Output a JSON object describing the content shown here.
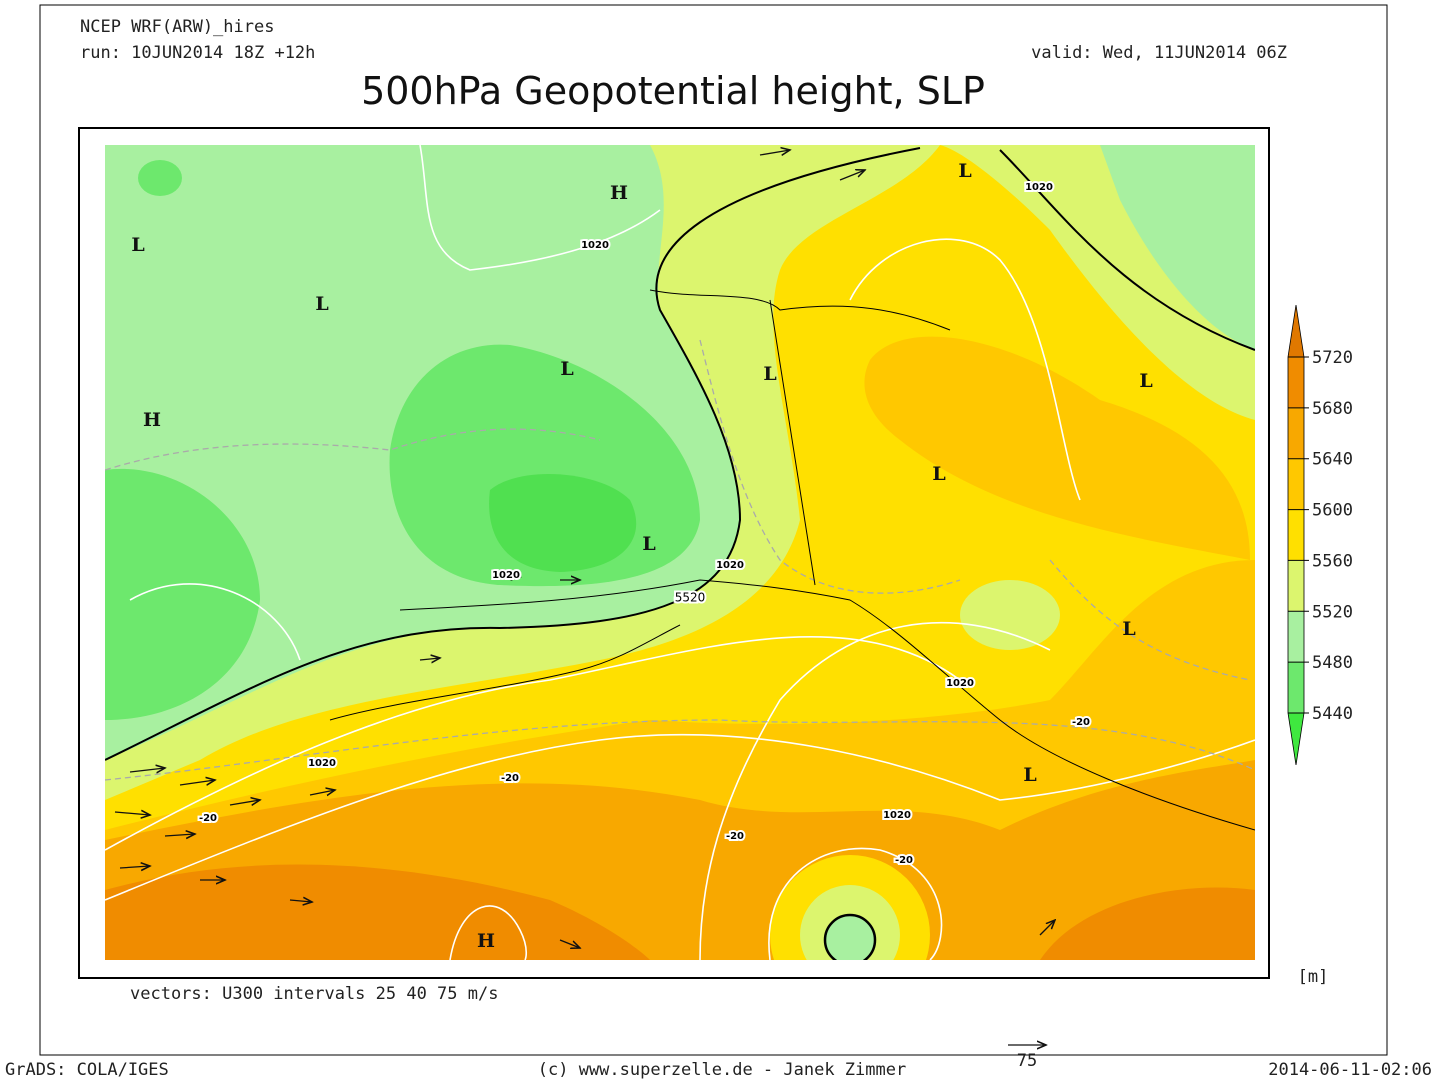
{
  "header": {
    "model": "NCEP WRF(ARW)_hires",
    "run": "run: 10JUN2014 18Z +12h",
    "valid": "valid: Wed, 11JUN2014 06Z",
    "title": "500hPa Geopotential height, SLP"
  },
  "pressure_centers": [
    "L",
    "H",
    "L",
    "L",
    "L",
    "H",
    "L",
    "L",
    "L",
    "L",
    "L",
    "L",
    "H"
  ],
  "contour_labels": [
    "1020",
    "1020",
    "1020",
    "1020",
    "5520",
    "1020",
    "-20",
    "1020",
    "-20",
    "-20",
    "-20",
    "1020",
    "-20"
  ],
  "colorbar": {
    "ticks": [
      5440,
      5480,
      5520,
      5560,
      5600,
      5640,
      5680,
      5720
    ],
    "colors": [
      "#3fe83f",
      "#6de86d",
      "#a8f0a0",
      "#dcf56e",
      "#ffe000",
      "#ffc800",
      "#f8a800",
      "#f08c00",
      "#e07800"
    ],
    "unit": "[m]"
  },
  "footer": {
    "vectors_note": "vectors: U300 intervals 25 40 75 m/s",
    "reference_vector": "75",
    "software": "GrADS: COLA/IGES",
    "credit": "(c) www.superzelle.de - Janek Zimmer",
    "timestamp": "2014-06-11-02:06"
  }
}
